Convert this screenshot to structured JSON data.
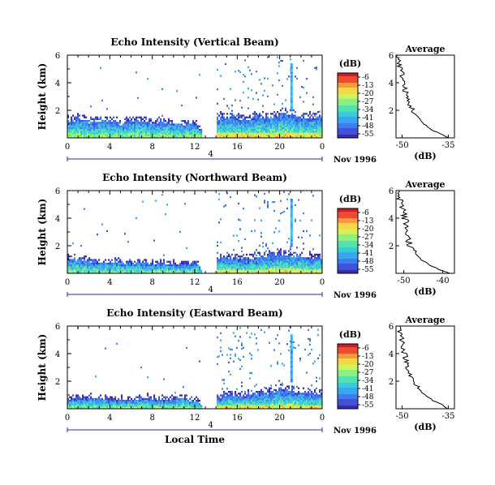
{
  "chart_data": [
    {
      "type": "heatmap",
      "title": "Echo Intensity (Vertical Beam)",
      "ylabel": "Height (km)",
      "yticks": [
        "6",
        "4",
        "2"
      ],
      "ylim": [
        0,
        6
      ],
      "xticks": [
        "0",
        "4",
        "8",
        "12",
        "16",
        "20",
        "0"
      ],
      "xlim": [
        0,
        24
      ],
      "date_label": "4",
      "date_suffix": "Nov 1996",
      "gap": [
        12.6,
        14.0
      ],
      "echo_top_km": [
        1.6,
        1.6,
        1.4,
        1.5,
        1.5,
        1.3,
        1.5,
        1.4,
        1.3,
        1.4,
        1.3,
        1.2,
        1.3,
        0,
        1.7,
        1.8,
        1.7,
        1.6,
        1.9,
        1.8,
        2.1,
        2.0,
        1.9,
        1.8
      ],
      "colorbar": {
        "unit": "(dB)",
        "labels": [
          "-6",
          "-13",
          "-20",
          "-27",
          "-34",
          "-41",
          "-48",
          "-55"
        ]
      },
      "profile": {
        "title": "Average",
        "xlabel": "(dB)",
        "xticks": [
          "-50",
          "-35"
        ],
        "xlim": [
          -52,
          -33
        ],
        "yticks": [
          "6",
          "4",
          "2"
        ],
        "height_km": [
          6.0,
          5.5,
          5.0,
          4.6,
          4.2,
          3.8,
          3.4,
          3.0,
          2.6,
          2.2,
          1.8,
          1.4,
          1.0,
          0.6,
          0.3,
          0.0
        ],
        "db": [
          -51.5,
          -51.0,
          -50.5,
          -50.0,
          -49.5,
          -49.5,
          -49.0,
          -48.5,
          -48.0,
          -47.0,
          -46.0,
          -44.5,
          -43.0,
          -40.5,
          -37.5,
          -35.0
        ]
      }
    },
    {
      "type": "heatmap",
      "title": "Echo Intensity (Northward Beam)",
      "ylabel": "Height (km)",
      "yticks": [
        "6",
        "4",
        "2"
      ],
      "ylim": [
        0,
        6
      ],
      "xticks": [
        "0",
        "4",
        "8",
        "12",
        "16",
        "20",
        "0"
      ],
      "xlim": [
        0,
        24
      ],
      "date_label": "4",
      "date_suffix": "Nov 1996",
      "gap": [
        12.6,
        14.0
      ],
      "echo_top_km": [
        1.3,
        1.2,
        1.1,
        0.9,
        1.0,
        1.0,
        0.9,
        1.0,
        0.9,
        0.9,
        0.8,
        0.9,
        0.9,
        0,
        1.3,
        1.4,
        1.3,
        1.2,
        1.4,
        1.5,
        1.7,
        1.6,
        1.5,
        1.4
      ],
      "colorbar": {
        "unit": "(dB)",
        "labels": [
          "-6",
          "-13",
          "-20",
          "-27",
          "-34",
          "-41",
          "-48",
          "-55"
        ]
      },
      "profile": {
        "title": "Average",
        "xlabel": "(dB)",
        "xticks": [
          "-50",
          "-40"
        ],
        "xlim": [
          -52,
          -37
        ],
        "yticks": [
          "6",
          "4",
          "2"
        ],
        "height_km": [
          6.0,
          5.5,
          5.0,
          4.6,
          4.2,
          3.8,
          3.4,
          3.0,
          2.6,
          2.2,
          1.8,
          1.4,
          1.0,
          0.6,
          0.3,
          0.0
        ],
        "db": [
          -51.0,
          -51.0,
          -50.5,
          -50.0,
          -50.0,
          -49.5,
          -49.5,
          -49.0,
          -49.0,
          -48.5,
          -48.0,
          -47.0,
          -45.5,
          -43.5,
          -41.0,
          -38.5
        ]
      }
    },
    {
      "type": "heatmap",
      "title": "Echo Intensity (Eastward Beam)",
      "ylabel": "Height (km)",
      "yticks": [
        "6",
        "4",
        "2"
      ],
      "ylim": [
        0,
        6
      ],
      "xticks": [
        "0",
        "4",
        "8",
        "12",
        "16",
        "20",
        "0"
      ],
      "xlim": [
        0,
        24
      ],
      "date_label": "4",
      "date_suffix": "Nov 1996",
      "xlabel": "Local Time",
      "gap": [
        12.6,
        14.0
      ],
      "echo_top_km": [
        0.9,
        0.9,
        1.0,
        0.8,
        0.9,
        0.8,
        0.8,
        1.0,
        0.9,
        0.8,
        0.9,
        0.9,
        0.8,
        0,
        1.0,
        1.2,
        1.1,
        1.2,
        1.3,
        1.5,
        1.6,
        1.5,
        1.4,
        1.3
      ],
      "colorbar": {
        "unit": "(dB)",
        "labels": [
          "-6",
          "-13",
          "-20",
          "-27",
          "-34",
          "-41",
          "-48",
          "-55"
        ]
      },
      "profile": {
        "title": "Average",
        "xlabel": "(dB)",
        "xticks": [
          "-50",
          "-35"
        ],
        "xlim": [
          -52,
          -33
        ],
        "yticks": [
          "6",
          "4",
          "2"
        ],
        "height_km": [
          6.0,
          5.5,
          5.0,
          4.6,
          4.2,
          3.8,
          3.4,
          3.0,
          2.6,
          2.2,
          1.8,
          1.4,
          1.0,
          0.6,
          0.3,
          0.0
        ],
        "db": [
          -51.0,
          -50.5,
          -50.0,
          -49.5,
          -49.5,
          -49.0,
          -48.5,
          -48.0,
          -47.5,
          -47.0,
          -46.0,
          -44.5,
          -42.5,
          -40.0,
          -37.0,
          -35.0
        ]
      }
    }
  ]
}
